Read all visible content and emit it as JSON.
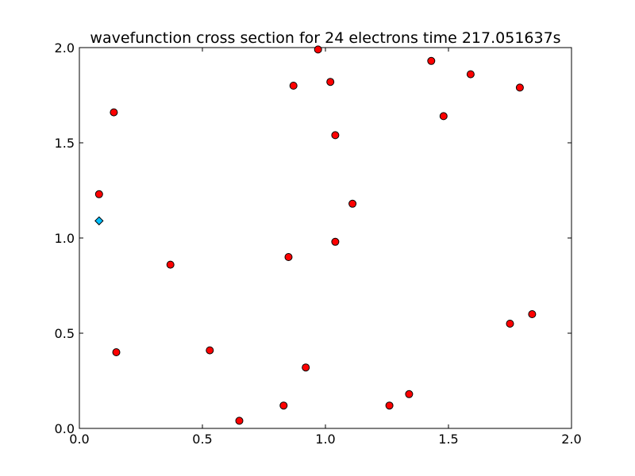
{
  "chart_data": {
    "type": "scatter",
    "title": "wavefunction cross section for 24 electrons time 217.051637s",
    "xlim": [
      0.0,
      2.0
    ],
    "ylim": [
      0.0,
      2.0
    ],
    "x_ticks": [
      "0.0",
      "0.5",
      "1.0",
      "1.5",
      "2.0"
    ],
    "y_ticks": [
      "0.0",
      "0.5",
      "1.0",
      "1.5",
      "2.0"
    ],
    "x_tick_values": [
      0.0,
      0.5,
      1.0,
      1.5,
      2.0
    ],
    "y_tick_values": [
      0.0,
      0.5,
      1.0,
      1.5,
      2.0
    ],
    "grid": false,
    "series": [
      {
        "marker": "circle",
        "color": "#ff0000",
        "edge_color": "#000000",
        "points": [
          [
            0.97,
            1.99
          ],
          [
            1.43,
            1.93
          ],
          [
            0.87,
            1.8
          ],
          [
            1.02,
            1.82
          ],
          [
            1.59,
            1.86
          ],
          [
            1.79,
            1.79
          ],
          [
            0.14,
            1.66
          ],
          [
            1.48,
            1.64
          ],
          [
            1.04,
            1.54
          ],
          [
            0.08,
            1.23
          ],
          [
            1.11,
            1.18
          ],
          [
            1.04,
            0.98
          ],
          [
            0.37,
            0.86
          ],
          [
            0.85,
            0.9
          ],
          [
            1.84,
            0.6
          ],
          [
            1.75,
            0.55
          ],
          [
            0.15,
            0.4
          ],
          [
            0.53,
            0.41
          ],
          [
            0.92,
            0.32
          ],
          [
            1.34,
            0.18
          ],
          [
            0.83,
            0.12
          ],
          [
            1.26,
            0.12
          ],
          [
            0.65,
            0.04
          ]
        ]
      },
      {
        "marker": "diamond",
        "color": "#00bfff",
        "edge_color": "#000000",
        "points": [
          [
            0.08,
            1.09
          ]
        ]
      }
    ]
  }
}
